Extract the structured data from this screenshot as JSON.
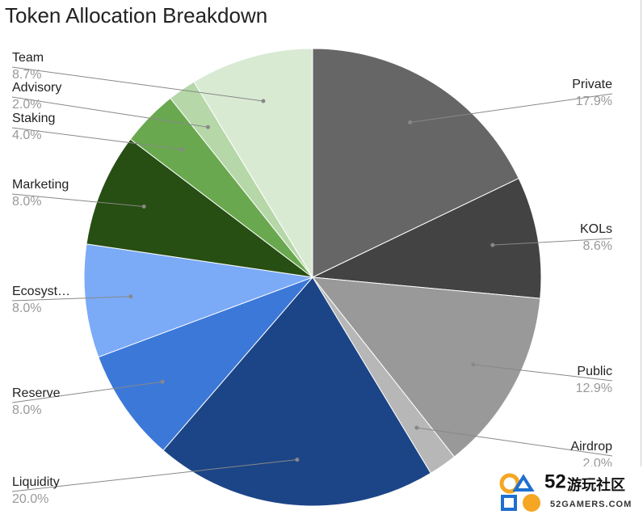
{
  "chart_data": {
    "type": "pie",
    "title": "Token Allocation Breakdown",
    "categories": [
      "Private",
      "KOLs",
      "Public",
      "Airdrop",
      "Liquidity",
      "Reserve",
      "Ecosyst…",
      "Marketing",
      "Staking",
      "Advisory",
      "Team"
    ],
    "values": [
      17.9,
      8.6,
      12.9,
      2.0,
      20.0,
      8.0,
      8.0,
      8.0,
      4.0,
      2.0,
      8.7
    ],
    "value_labels": [
      "17.9%",
      "8.6%",
      "12.9%",
      "2.0%",
      "20.0%",
      "8.0%",
      "8.0%",
      "8.0%",
      "4.0%",
      "2.0%",
      "8.7%"
    ],
    "colors": [
      "#666666",
      "#434343",
      "#999999",
      "#b7b7b7",
      "#1c4587",
      "#3c78d8",
      "#7baaf7",
      "#274e13",
      "#6aa84f",
      "#b6d7a8",
      "#d9ead3"
    ]
  },
  "watermark": {
    "number": "52",
    "name": "游玩社区",
    "site": "52GAMERS.COM"
  }
}
